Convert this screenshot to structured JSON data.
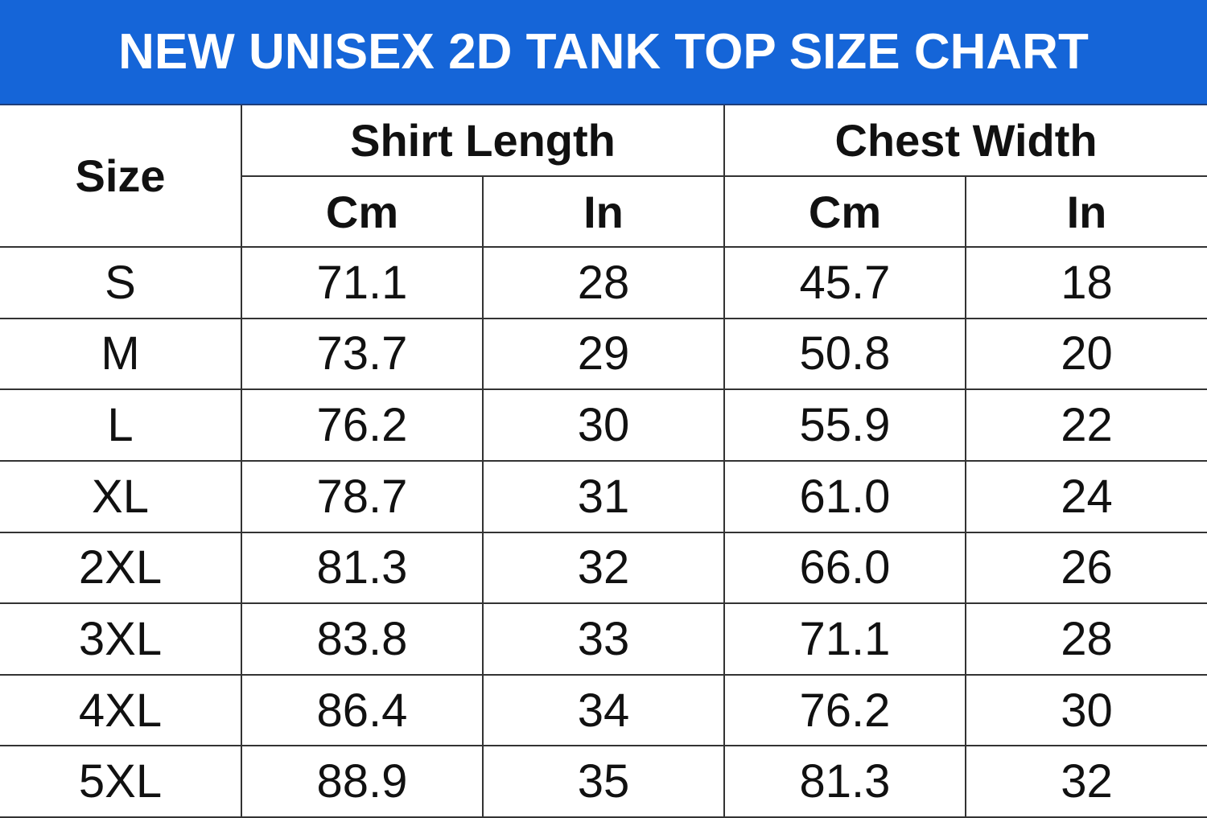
{
  "title": "NEW UNISEX 2D TANK TOP SIZE CHART",
  "colors": {
    "header_bg": "#1565d8",
    "header_text": "#ffffff",
    "grid": "#333333",
    "text": "#111111"
  },
  "headers": {
    "size": "Size",
    "groups": [
      {
        "label": "Shirt Length",
        "units": [
          "Cm",
          "In"
        ]
      },
      {
        "label": "Chest Width",
        "units": [
          "Cm",
          "In"
        ]
      }
    ]
  },
  "rows": [
    {
      "size": "S",
      "length_cm": "71.1",
      "length_in": "28",
      "chest_cm": "45.7",
      "chest_in": "18"
    },
    {
      "size": "M",
      "length_cm": "73.7",
      "length_in": "29",
      "chest_cm": "50.8",
      "chest_in": "20"
    },
    {
      "size": "L",
      "length_cm": "76.2",
      "length_in": "30",
      "chest_cm": "55.9",
      "chest_in": "22"
    },
    {
      "size": "XL",
      "length_cm": "78.7",
      "length_in": "31",
      "chest_cm": "61.0",
      "chest_in": "24"
    },
    {
      "size": "2XL",
      "length_cm": "81.3",
      "length_in": "32",
      "chest_cm": "66.0",
      "chest_in": "26"
    },
    {
      "size": "3XL",
      "length_cm": "83.8",
      "length_in": "33",
      "chest_cm": "71.1",
      "chest_in": "28"
    },
    {
      "size": "4XL",
      "length_cm": "86.4",
      "length_in": "34",
      "chest_cm": "76.2",
      "chest_in": "30"
    },
    {
      "size": "5XL",
      "length_cm": "88.9",
      "length_in": "35",
      "chest_cm": "81.3",
      "chest_in": "32"
    }
  ]
}
